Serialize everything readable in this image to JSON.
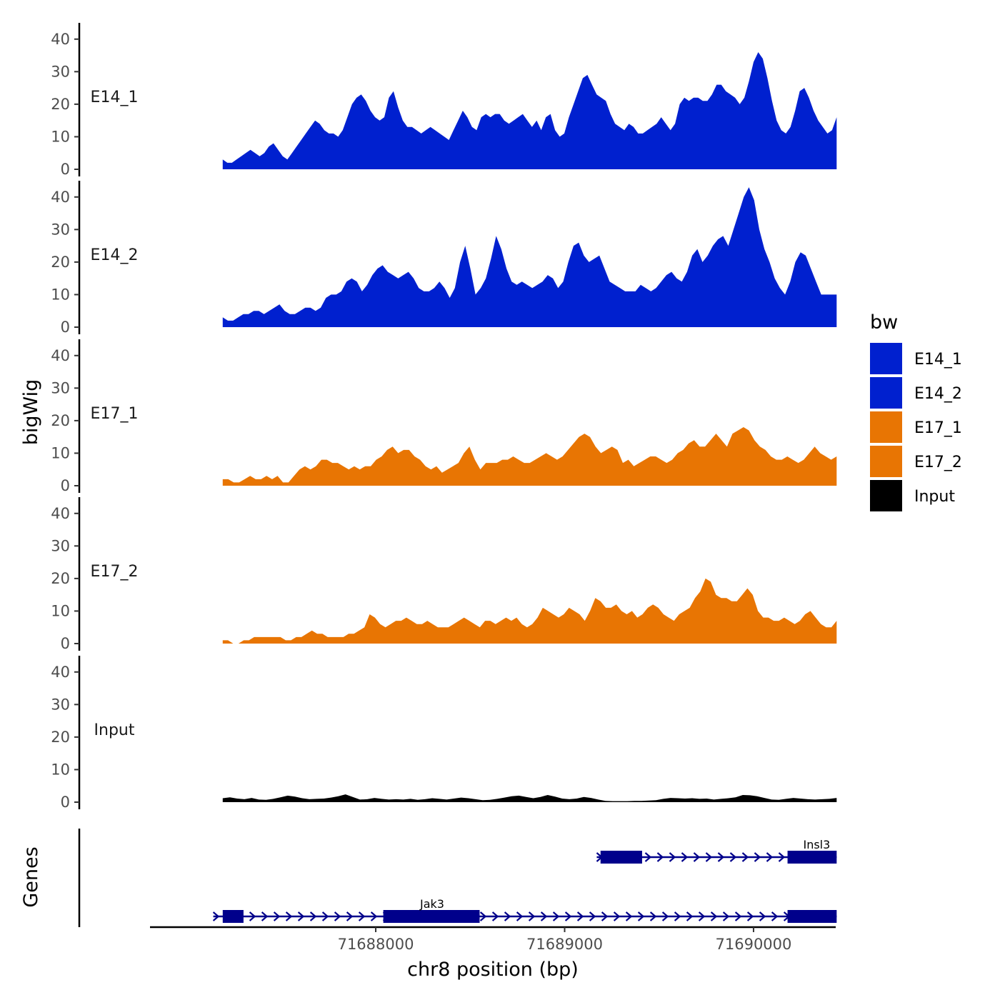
{
  "chart_data": {
    "type": "area",
    "title": "",
    "xlabel": "chr8 position (bp)",
    "ylabel": "bigWig",
    "genes_label": "Genes",
    "xlim": [
      71686805,
      71690435
    ],
    "region": [
      71687190,
      71690440
    ],
    "ylim": [
      0,
      45
    ],
    "yticks": [
      0,
      10,
      20,
      30,
      40
    ],
    "xticks": [
      71688000,
      71689000,
      71690000
    ],
    "xtick_labels": [
      "71688000",
      "71689000",
      "71690000"
    ],
    "legend": {
      "title": "bw",
      "position": "right",
      "entries": [
        {
          "label": "E14_1",
          "color": "#0020CF"
        },
        {
          "label": "E14_2",
          "color": "#0020CF"
        },
        {
          "label": "E17_1",
          "color": "#E87503"
        },
        {
          "label": "E17_2",
          "color": "#E87503"
        },
        {
          "label": "Input",
          "color": "#000000"
        }
      ]
    },
    "series": [
      {
        "name": "E14_1",
        "color": "#0020CF",
        "values": [
          3,
          2,
          2,
          3,
          4,
          5,
          6,
          5,
          4,
          5,
          7,
          8,
          6,
          4,
          3,
          5,
          7,
          9,
          11,
          13,
          15,
          14,
          12,
          11,
          11,
          10,
          12,
          16,
          20,
          22,
          23,
          21,
          18,
          16,
          15,
          16,
          22,
          24,
          19,
          15,
          13,
          13,
          12,
          11,
          12,
          13,
          12,
          11,
          10,
          9,
          12,
          15,
          18,
          16,
          13,
          12,
          16,
          17,
          16,
          17,
          17,
          15,
          14,
          15,
          16,
          17,
          15,
          13,
          15,
          12,
          16,
          17,
          12,
          10,
          11,
          16,
          20,
          24,
          28,
          29,
          26,
          23,
          22,
          21,
          17,
          14,
          13,
          12,
          14,
          13,
          11,
          11,
          12,
          13,
          14,
          16,
          14,
          12,
          14,
          20,
          22,
          21,
          22,
          22,
          21,
          21,
          23,
          26,
          26,
          24,
          23,
          22,
          20,
          22,
          27,
          33,
          36,
          34,
          28,
          21,
          15,
          12,
          11,
          13,
          18,
          24,
          25,
          22,
          18,
          15,
          13,
          11,
          12,
          16
        ]
      },
      {
        "name": "E14_2",
        "color": "#0020CF",
        "values": [
          3,
          2,
          2,
          3,
          4,
          4,
          5,
          5,
          4,
          5,
          6,
          7,
          5,
          4,
          4,
          5,
          6,
          6,
          5,
          6,
          9,
          10,
          10,
          11,
          14,
          15,
          14,
          11,
          13,
          16,
          18,
          19,
          17,
          16,
          15,
          16,
          17,
          15,
          12,
          11,
          11,
          12,
          14,
          12,
          9,
          12,
          20,
          25,
          18,
          10,
          12,
          15,
          21,
          28,
          24,
          18,
          14,
          13,
          14,
          13,
          12,
          13,
          14,
          16,
          15,
          12,
          14,
          20,
          25,
          26,
          22,
          20,
          21,
          22,
          18,
          14,
          13,
          12,
          11,
          11,
          11,
          13,
          12,
          11,
          12,
          14,
          16,
          17,
          15,
          14,
          17,
          22,
          24,
          20,
          22,
          25,
          27,
          28,
          25,
          30,
          35,
          40,
          43,
          39,
          30,
          24,
          20,
          15,
          12,
          10,
          14,
          20,
          23,
          22,
          18,
          14,
          10,
          10,
          10,
          10
        ]
      },
      {
        "name": "E17_1",
        "color": "#E87503",
        "values": [
          2,
          2,
          1,
          1,
          2,
          3,
          2,
          2,
          3,
          2,
          3,
          1,
          1,
          3,
          5,
          6,
          5,
          6,
          8,
          8,
          7,
          7,
          6,
          5,
          6,
          5,
          6,
          6,
          8,
          9,
          11,
          12,
          10,
          11,
          11,
          9,
          8,
          6,
          5,
          6,
          4,
          5,
          6,
          7,
          10,
          12,
          8,
          5,
          7,
          7,
          7,
          8,
          8,
          9,
          8,
          7,
          7,
          8,
          9,
          10,
          9,
          8,
          9,
          11,
          13,
          15,
          16,
          15,
          12,
          10,
          11,
          12,
          11,
          7,
          8,
          6,
          7,
          8,
          9,
          9,
          8,
          7,
          8,
          10,
          11,
          13,
          14,
          12,
          12,
          14,
          16,
          14,
          12,
          16,
          17,
          18,
          17,
          14,
          12,
          11,
          9,
          8,
          8,
          9,
          8,
          7,
          8,
          10,
          12,
          10,
          9,
          8,
          9
        ]
      },
      {
        "name": "E17_2",
        "color": "#E87503",
        "values": [
          1,
          1,
          0,
          0,
          1,
          1,
          2,
          2,
          2,
          2,
          2,
          2,
          1,
          1,
          2,
          2,
          3,
          4,
          3,
          3,
          2,
          2,
          2,
          2,
          3,
          3,
          4,
          5,
          9,
          8,
          6,
          5,
          6,
          7,
          7,
          8,
          7,
          6,
          6,
          7,
          6,
          5,
          5,
          5,
          6,
          7,
          8,
          7,
          6,
          5,
          7,
          7,
          6,
          7,
          8,
          7,
          8,
          6,
          5,
          6,
          8,
          11,
          10,
          9,
          8,
          9,
          11,
          10,
          9,
          7,
          10,
          14,
          13,
          11,
          11,
          12,
          10,
          9,
          10,
          8,
          9,
          11,
          12,
          11,
          9,
          8,
          7,
          9,
          10,
          11,
          14,
          16,
          20,
          19,
          15,
          14,
          14,
          13,
          13,
          15,
          17,
          15,
          10,
          8,
          8,
          7,
          7,
          8,
          7,
          6,
          7,
          9,
          10,
          8,
          6,
          5,
          5,
          7
        ]
      },
      {
        "name": "Input",
        "color": "#000000",
        "values": [
          1.2,
          1.5,
          1.1,
          0.9,
          1.3,
          0.8,
          0.7,
          1.0,
          1.5,
          2.0,
          1.7,
          1.2,
          0.9,
          1.0,
          1.1,
          1.4,
          1.8,
          2.4,
          1.6,
          0.8,
          0.9,
          1.3,
          1.0,
          0.8,
          0.9,
          0.8,
          1.0,
          0.7,
          0.9,
          1.2,
          1.0,
          0.8,
          1.1,
          1.4,
          1.2,
          0.9,
          0.6,
          0.7,
          1.0,
          1.4,
          1.8,
          2.0,
          1.6,
          1.2,
          1.6,
          2.2,
          1.7,
          1.1,
          0.9,
          1.1,
          1.6,
          1.3,
          0.8,
          0.4,
          0.3,
          0.3,
          0.3,
          0.4,
          0.4,
          0.5,
          0.6,
          1.0,
          1.3,
          1.2,
          1.1,
          1.2,
          1.0,
          1.1,
          0.8,
          1.0,
          1.2,
          1.5,
          2.2,
          2.1,
          1.8,
          1.3,
          0.8,
          0.7,
          1.0,
          1.3,
          1.1,
          0.9,
          0.8,
          0.9,
          1.0,
          1.3
        ]
      }
    ],
    "genes": [
      {
        "name": "Insl3",
        "start": 71689170,
        "end": 71690440,
        "row": 1,
        "strand": "+",
        "exons": [
          [
            71689190,
            71689410
          ],
          [
            71690180,
            71690440
          ]
        ]
      },
      {
        "name": "Jak3",
        "start": 71687140,
        "end": 71690440,
        "row": 2,
        "strand": "+",
        "exons": [
          [
            71687190,
            71687300
          ],
          [
            71688040,
            71688550
          ],
          [
            71690180,
            71690440
          ]
        ]
      }
    ],
    "gene_color": "#00008B"
  }
}
